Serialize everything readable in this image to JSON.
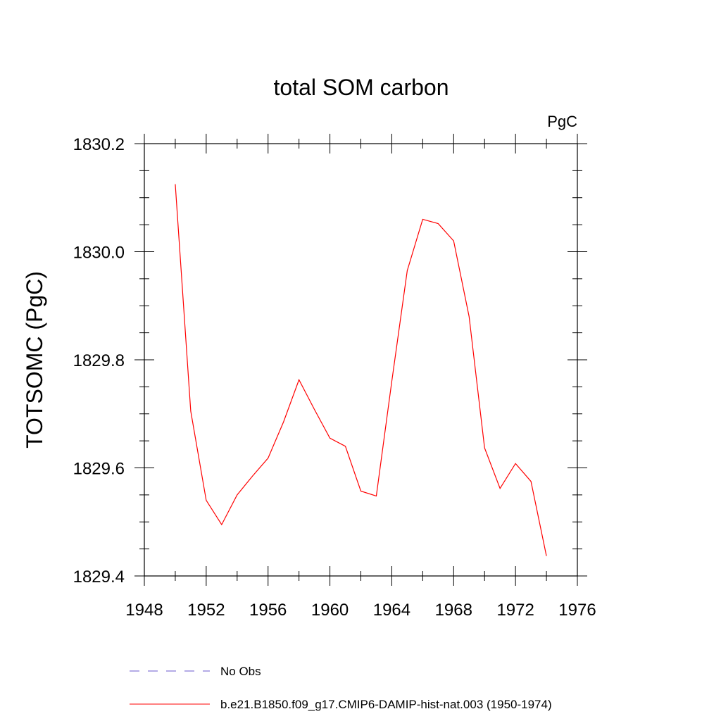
{
  "chart_data": {
    "type": "line",
    "title": "total SOM carbon",
    "units_label": "PgC",
    "xlabel": "",
    "ylabel": "TOTSOMC  (PgC)",
    "xlim": [
      1948,
      1976
    ],
    "ylim": [
      1829.4,
      1830.2
    ],
    "x_major_ticks": [
      1948,
      1952,
      1956,
      1960,
      1964,
      1968,
      1972,
      1976
    ],
    "x_minor_step": 2,
    "y_major_ticks": [
      1829.4,
      1829.6,
      1829.8,
      1830.0,
      1830.2
    ],
    "y_tick_labels": [
      "1829.4",
      "1829.6",
      "1829.8",
      "1830.0",
      "1830.2"
    ],
    "y_minor_step": 0.05,
    "grid": false,
    "legend_placement": "bottom",
    "series": [
      {
        "name": "No Obs",
        "color": "#6a5acd",
        "dash": "dashed",
        "x": [],
        "y": []
      },
      {
        "name": "b.e21.B1850.f09_g17.CMIP6-DAMIP-hist-nat.003 (1950-1974)",
        "color": "#ff0000",
        "dash": "solid",
        "x": [
          1950,
          1951,
          1952,
          1953,
          1954,
          1955,
          1956,
          1957,
          1958,
          1959,
          1960,
          1961,
          1962,
          1963,
          1964,
          1965,
          1966,
          1967,
          1968,
          1969,
          1970,
          1971,
          1972,
          1973,
          1974
        ],
        "y": [
          1830.125,
          1829.705,
          1829.54,
          1829.495,
          1829.55,
          1829.585,
          1829.618,
          1829.685,
          1829.763,
          1829.708,
          1829.655,
          1829.64,
          1829.557,
          1829.548,
          1829.76,
          1829.965,
          1830.06,
          1830.052,
          1830.02,
          1829.88,
          1829.637,
          1829.562,
          1829.608,
          1829.575,
          1829.437
        ]
      }
    ]
  }
}
